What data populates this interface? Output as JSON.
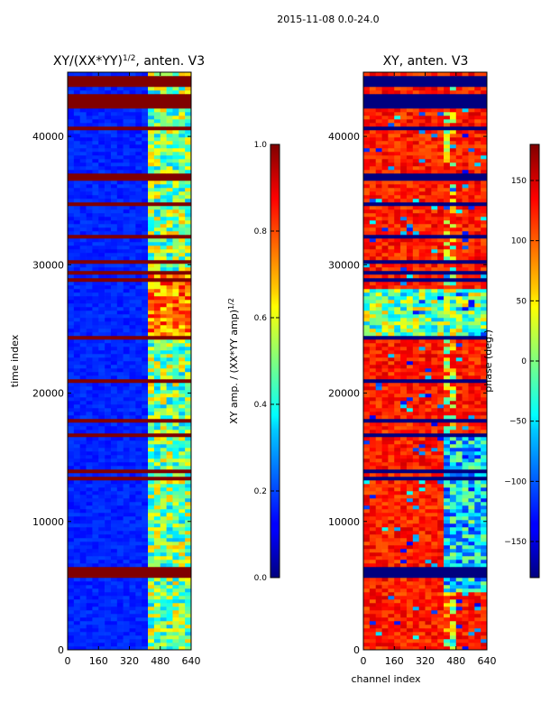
{
  "chart_data": [
    {
      "type": "heatmap",
      "title_main": "XY/(XX*YY)",
      "title_sup": "1/2",
      "title_rest": ", anten. V3",
      "suptitle": "2015-11-08 0.0-24.0",
      "xlabel": "",
      "ylabel": "time index",
      "xlim": [
        0,
        640
      ],
      "ylim": [
        0,
        45000
      ],
      "xticks": [
        "0",
        "160",
        "320",
        "480",
        "640"
      ],
      "yticks": [
        "0",
        "10000",
        "20000",
        "30000",
        "40000"
      ],
      "colormap": "jet",
      "colorbar": {
        "label_main": "XY amp. / (XX*YY amp)",
        "label_sup": "1/2",
        "range": [
          0.0,
          1.0
        ],
        "ticks": [
          "0.0",
          "0.2",
          "0.4",
          "0.6",
          "0.8",
          "1.0"
        ]
      },
      "description_values": {
        "background_level": 0.1,
        "high_channel_band": [
          420,
          640
        ],
        "high_band_level": 0.5,
        "flagged_level": 1.0
      }
    },
    {
      "type": "heatmap",
      "title": "XY, anten. V3",
      "xlabel": "channel index",
      "ylabel": "",
      "xlim": [
        0,
        640
      ],
      "ylim": [
        0,
        45000
      ],
      "xticks": [
        "0",
        "160",
        "320",
        "480",
        "640"
      ],
      "yticks": [
        "0",
        "10000",
        "20000",
        "30000",
        "40000"
      ],
      "colormap": "jet",
      "colorbar": {
        "label": "phase (deg.)",
        "range": [
          -180,
          180
        ],
        "ticks": [
          "−150",
          "−100",
          "−50",
          "0",
          "50",
          "100",
          "150"
        ]
      },
      "description_values": {
        "dominant_phase_deg": 120,
        "flagged_level_deg": -180
      }
    }
  ],
  "colors": {
    "jet_dark_blue": "#00007f",
    "jet_blue": "#0000ff",
    "jet_cyan": "#00ffff",
    "jet_yellow": "#ffff00",
    "jet_red": "#ff0000",
    "jet_dark_red": "#7f0000",
    "flag_red": "#7f0000"
  }
}
